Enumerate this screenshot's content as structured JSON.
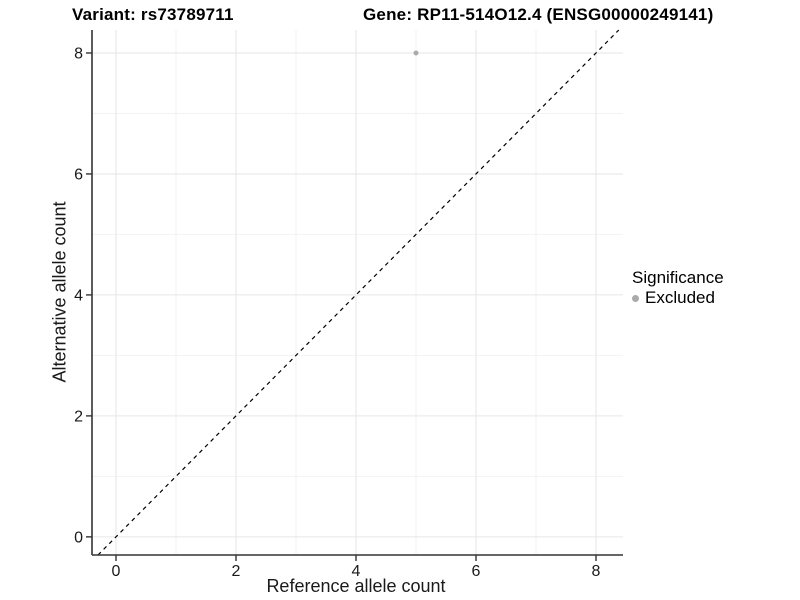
{
  "figure": {
    "variant_title": "Variant: rs73789711",
    "gene_title": "Gene: RP11-514O12.4 (ENSG00000249141)"
  },
  "chart_data": {
    "type": "scatter",
    "xlabel": "Reference allele count",
    "ylabel": "Alternative allele count",
    "x_ticks": [
      0,
      2,
      4,
      6,
      8
    ],
    "y_ticks": [
      0,
      2,
      4,
      6,
      8
    ],
    "x_minor_ticks": [
      1,
      3,
      5,
      7
    ],
    "y_minor_ticks": [
      1,
      3,
      5,
      7
    ],
    "xlim": [
      -0.4,
      8.45
    ],
    "ylim": [
      -0.3,
      8.38
    ],
    "grid": "major and minor, light gray on white",
    "points": [
      {
        "x": 5,
        "y": 8,
        "series": "Excluded"
      }
    ],
    "reference_line": {
      "type": "identity",
      "slope": 1,
      "intercept": 0,
      "style": "dashed",
      "color": "#000000"
    },
    "legend": {
      "title": "Significance",
      "position": "right",
      "items": [
        {
          "label": "Excluded",
          "color": "#aaaaaa"
        }
      ]
    },
    "colors": {
      "point": "#aaaaaa",
      "grid_major": "#e6e6e6",
      "grid_minor": "#f2f2f2",
      "axis": "#333333",
      "text": "#1a1a1a"
    }
  }
}
